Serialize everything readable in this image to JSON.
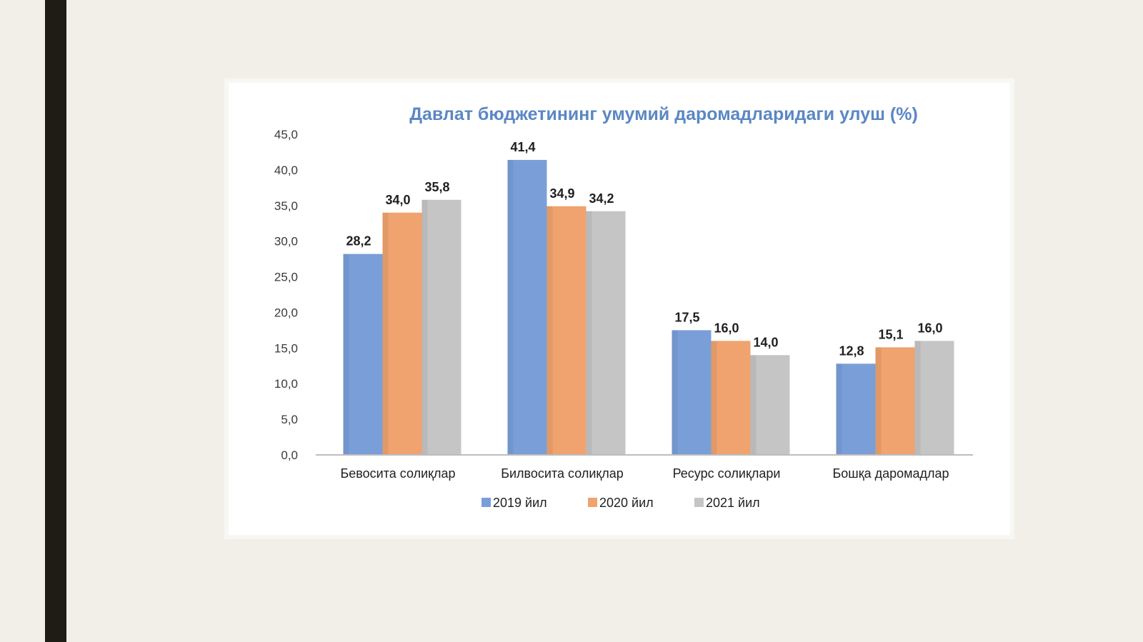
{
  "chart_data": {
    "type": "bar",
    "title": "Давлат бюджетининг умумий даромадларидаги улуш (%)",
    "categories": [
      "Бевосита солиқлар",
      "Билвосита солиқлар",
      "Ресурс солиқлари",
      "Бошқа даромадлар"
    ],
    "series": [
      {
        "name": "2019 йил",
        "values": [
          28.2,
          41.4,
          17.5,
          12.8
        ],
        "color": "#7a9fd8",
        "labels": [
          "28,2",
          "41,4",
          "17,5",
          "12,8"
        ]
      },
      {
        "name": "2020 йил",
        "values": [
          34.0,
          34.9,
          16.0,
          15.1
        ],
        "color": "#f0a36e",
        "labels": [
          "34,0",
          "34,9",
          "16,0",
          "15,1"
        ]
      },
      {
        "name": "2021 йил",
        "values": [
          35.8,
          34.2,
          14.0,
          16.0
        ],
        "color": "#c5c5c5",
        "labels": [
          "35,8",
          "34,2",
          "14,0",
          "16,0"
        ]
      }
    ],
    "yticks": [
      "0,0",
      "5,0",
      "10,0",
      "15,0",
      "20,0",
      "25,0",
      "30,0",
      "35,0",
      "40,0",
      "45,0"
    ],
    "ylim": [
      0,
      45
    ],
    "grid": false,
    "legend": "bottom"
  }
}
